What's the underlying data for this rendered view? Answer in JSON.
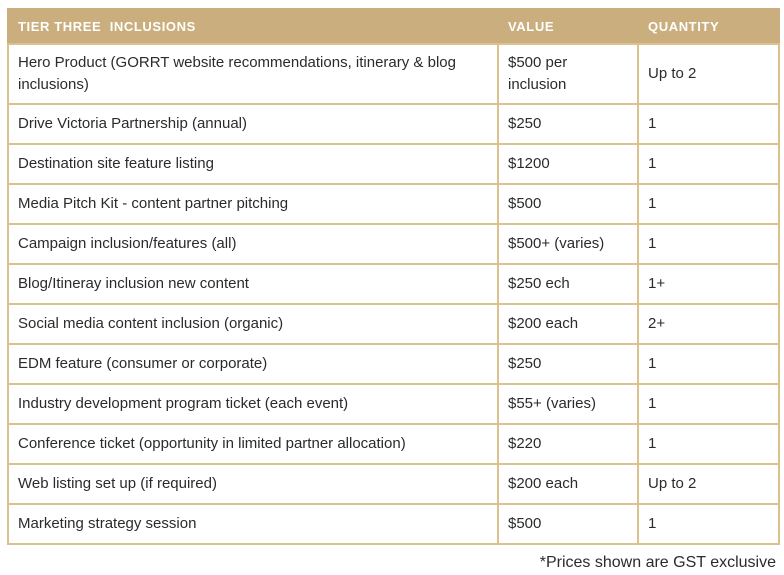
{
  "colors": {
    "header_bg": "#cbae7d",
    "border": "#dbc18e",
    "header_text": "#ffffff",
    "body_text": "#2b2b2b"
  },
  "table": {
    "columns": [
      {
        "label": "TIER THREE  INCLUSIONS"
      },
      {
        "label": "VALUE"
      },
      {
        "label": "QUANTITY"
      }
    ],
    "rows": [
      {
        "inclusion": "Hero Product (GORRT website recommendations, itinerary & blog inclusions)",
        "value": "$500 per inclusion",
        "quantity": "Up to 2"
      },
      {
        "inclusion": "Drive Victoria Partnership (annual)",
        "value": "$250",
        "quantity": "1"
      },
      {
        "inclusion": "Destination site feature listing",
        "value": "$1200",
        "quantity": "1"
      },
      {
        "inclusion": "Media Pitch Kit - content partner pitching",
        "value": "$500",
        "quantity": "1"
      },
      {
        "inclusion": "Campaign inclusion/features (all)",
        "value": "$500+ (varies)",
        "quantity": "1"
      },
      {
        "inclusion": "Blog/Itineray inclusion new content",
        "value": "$250 ech",
        "quantity": "1+"
      },
      {
        "inclusion": "Social media content inclusion (organic)",
        "value": "$200 each",
        "quantity": "2+"
      },
      {
        "inclusion": "EDM feature (consumer or corporate)",
        "value": "$250",
        "quantity": "1"
      },
      {
        "inclusion": "Industry development program ticket (each event)",
        "value": "$55+ (varies)",
        "quantity": "1"
      },
      {
        "inclusion": "Conference ticket (opportunity in limited partner allocation)",
        "value": "$220",
        "quantity": "1"
      },
      {
        "inclusion": "Web listing set up (if required)",
        "value": "$200 each",
        "quantity": "Up to 2"
      },
      {
        "inclusion": "Marketing strategy session",
        "value": "$500",
        "quantity": "1"
      }
    ]
  },
  "footer": {
    "note": "*Prices shown are GST exclusive"
  }
}
